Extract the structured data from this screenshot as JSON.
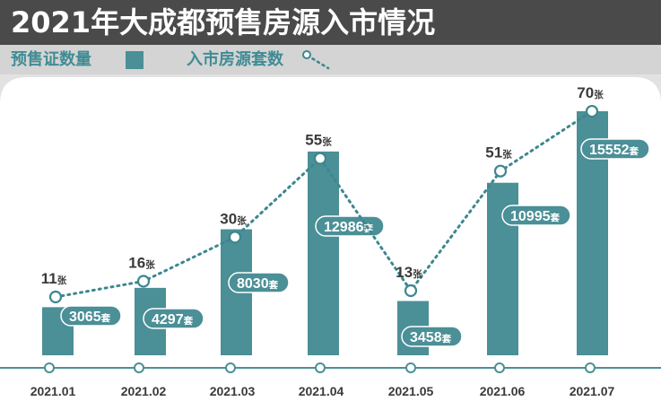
{
  "colors": {
    "title_bar": "#4a4a4a",
    "legend_band": "#d4d4d4",
    "bar": "#4b8f97",
    "line": "#3d8790",
    "label_text": "#3a3a3a"
  },
  "chart_data": {
    "type": "bar",
    "title": "2021年大成都预售房源入市情况",
    "xlabel": "",
    "ylabel": "",
    "grid": false,
    "y_axis": "hidden",
    "legend_position": "top-left",
    "legend": [
      {
        "label": "预售证数量",
        "symbol": "square-swatch-icon"
      },
      {
        "label": "入市房源套数",
        "symbol": "dotted-line-icon"
      }
    ],
    "categories": [
      "2021.01",
      "2021.02",
      "2021.03",
      "2021.04",
      "2021.05",
      "2021.06",
      "2021.07"
    ],
    "series": [
      {
        "type": "bar",
        "unit": "套",
        "values": [
          3065,
          4297,
          8030,
          12986,
          3458,
          10995,
          15552
        ]
      },
      {
        "type": "line",
        "style": "dotted",
        "marker": "circle",
        "unit": "张",
        "values": [
          11,
          16,
          30,
          55,
          13,
          51,
          70
        ]
      }
    ]
  }
}
